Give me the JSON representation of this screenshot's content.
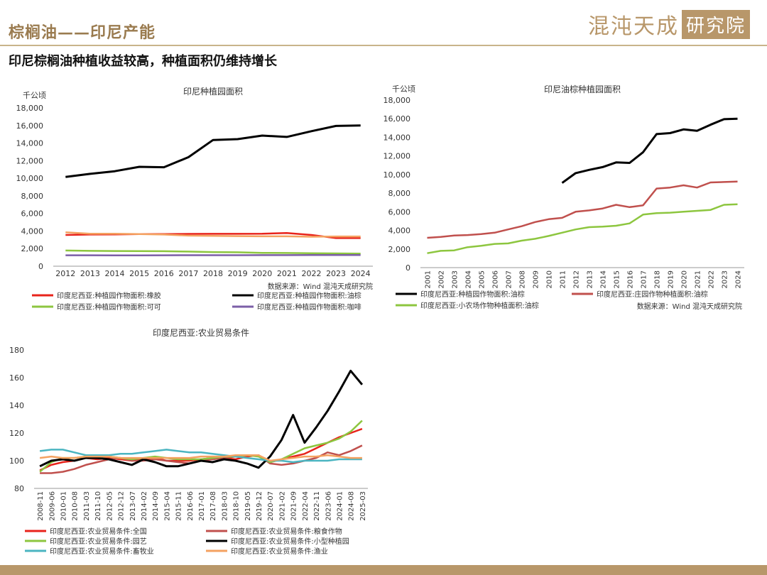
{
  "header": {
    "title": "棕榈油——印尼产能",
    "subtitle": "印尼棕榈油种植收益较高，种植面积仍维持增长",
    "logo_text": "混沌天成",
    "logo_box_text": "研究院"
  },
  "colors": {
    "accent": "#b8976a",
    "black": "#000000",
    "red": "#e8231b",
    "green": "#8dc63f",
    "purple": "#7b5ea7",
    "orange": "#f4a261",
    "rose": "#c0504d",
    "cyan": "#4bb5c1"
  },
  "chart_data": [
    {
      "type": "line",
      "title": "印尼种植园面积",
      "unit": "千公顷",
      "source": "数据来源：Wind 混沌天成研究院",
      "categories": [
        "2012",
        "2013",
        "2014",
        "2015",
        "2016",
        "2017",
        "2018",
        "2019",
        "2020",
        "2021",
        "2022",
        "2023",
        "2024"
      ],
      "ylim": [
        0,
        18000
      ],
      "yticks": [
        0,
        2000,
        4000,
        6000,
        8000,
        10000,
        12000,
        14000,
        16000,
        18000
      ],
      "ytick_labels": [
        "0",
        "2,000",
        "4,000",
        "6,000",
        "8,000",
        "10,000",
        "12,000",
        "14,000",
        "16,000",
        "18,000"
      ],
      "series": [
        {
          "name": "印度尼西亚:种植园作物面积:橡胶",
          "color": "#e8231b",
          "values": [
            3550,
            3600,
            3620,
            3650,
            3650,
            3670,
            3680,
            3680,
            3700,
            3780,
            3550,
            3200,
            3200
          ]
        },
        {
          "name": "印度尼西亚:种植园作物面积:油棕",
          "color": "#000000",
          "values": [
            10150,
            10500,
            10800,
            11300,
            11250,
            12400,
            14350,
            14450,
            14850,
            14700,
            15350,
            15950,
            16000
          ]
        },
        {
          "name": "印度尼西亚:种植园作物面积:可可",
          "color": "#8dc63f",
          "values": [
            1780,
            1740,
            1730,
            1710,
            1700,
            1660,
            1610,
            1580,
            1520,
            1500,
            1470,
            1450,
            1430
          ]
        },
        {
          "name": "印度尼西亚:种植园作物面积:咖啡",
          "color": "#7b5ea7",
          "values": [
            1240,
            1240,
            1230,
            1230,
            1240,
            1250,
            1250,
            1250,
            1260,
            1260,
            1270,
            1270,
            1270
          ]
        },
        {
          "name": "",
          "color": "#f4a261",
          "values": [
            3850,
            3700,
            3700,
            3650,
            3600,
            3480,
            3450,
            3420,
            3400,
            3400,
            3350,
            3380,
            3380
          ]
        }
      ],
      "legend_placement": "bottom"
    },
    {
      "type": "line",
      "title": "印尼油棕种植园面积",
      "unit": "千公顷",
      "source": "数据来源：Wind  混沌天成研究院",
      "categories": [
        "2001",
        "2002",
        "2003",
        "2004",
        "2005",
        "2006",
        "2007",
        "2008",
        "2009",
        "2010",
        "2011",
        "2012",
        "2013",
        "2014",
        "2015",
        "2016",
        "2017",
        "2018",
        "2019",
        "2020",
        "2021",
        "2022",
        "2023",
        "2024"
      ],
      "ylim": [
        0,
        18000
      ],
      "yticks": [
        0,
        2000,
        4000,
        6000,
        8000,
        10000,
        12000,
        14000,
        16000,
        18000
      ],
      "ytick_labels": [
        "0",
        "2,000",
        "4,000",
        "6,000",
        "8,000",
        "10,000",
        "12,000",
        "14,000",
        "16,000",
        "18,000"
      ],
      "series": [
        {
          "name": "印度尼西亚:种植园作物面积:油棕",
          "color": "#000000",
          "values": [
            null,
            null,
            null,
            null,
            null,
            null,
            null,
            null,
            null,
            null,
            9100,
            10150,
            10500,
            10800,
            11300,
            11250,
            12400,
            14350,
            14450,
            14850,
            14700,
            15350,
            15950,
            16000
          ]
        },
        {
          "name": "印度尼西亚:庄园作物种植面积:油棕",
          "color": "#c0504d",
          "values": [
            3200,
            3300,
            3450,
            3500,
            3600,
            3750,
            4100,
            4450,
            4900,
            5200,
            5350,
            6000,
            6150,
            6350,
            6750,
            6500,
            6700,
            8500,
            8600,
            8850,
            8600,
            9150,
            9200,
            9250
          ]
        },
        {
          "name": "印度尼西亚:小农场作物种植面积:油棕",
          "color": "#8dc63f",
          "values": [
            1550,
            1800,
            1850,
            2200,
            2350,
            2550,
            2600,
            2900,
            3100,
            3400,
            3750,
            4100,
            4350,
            4400,
            4500,
            4750,
            5700,
            5850,
            5900,
            6000,
            6100,
            6200,
            6750,
            6800
          ]
        }
      ],
      "legend_placement": "bottom"
    },
    {
      "type": "line",
      "title": "印度尼西亚:农业贸易条件",
      "categories": [
        "2008-11",
        "2009-06",
        "2010-01",
        "2010-08",
        "2011-03",
        "2011-10",
        "2012-05",
        "2012-12",
        "2013-07",
        "2014-02",
        "2014-09",
        "2015-04",
        "2015-11",
        "2016-06",
        "2017-01",
        "2017-08",
        "2018-03",
        "2018-10",
        "2019-05",
        "2019-12",
        "2020-07",
        "2021-02",
        "2021-09",
        "2022-04",
        "2022-11",
        "2023-06",
        "2024-01",
        "2024-08",
        "2025-03"
      ],
      "ylim": [
        80,
        180
      ],
      "yticks": [
        80,
        100,
        120,
        140,
        160,
        180
      ],
      "ytick_labels": [
        "80",
        "100",
        "120",
        "140",
        "160",
        "180"
      ],
      "series": [
        {
          "name": "印度尼西亚:农业贸易条件:全国",
          "color": "#e8231b",
          "values": [
            93,
            97,
            99,
            100,
            102,
            101,
            102,
            101,
            100,
            101,
            102,
            100,
            100,
            100,
            101,
            102,
            102,
            101,
            103,
            104,
            99,
            101,
            103,
            105,
            109,
            113,
            117,
            120,
            123
          ]
        },
        {
          "name": "印度尼西亚:农业贸易条件:粮食作物",
          "color": "#c0504d",
          "values": [
            91,
            91,
            92,
            94,
            97,
            99,
            101,
            102,
            100,
            100,
            101,
            100,
            99,
            98,
            100,
            101,
            102,
            103,
            104,
            104,
            98,
            97,
            98,
            100,
            102,
            106,
            104,
            107,
            111
          ]
        },
        {
          "name": "印度尼西亚:农业贸易条件:园艺",
          "color": "#8dc63f",
          "values": [
            92,
            99,
            102,
            102,
            103,
            103,
            103,
            102,
            101,
            102,
            103,
            102,
            101,
            101,
            101,
            102,
            103,
            103,
            104,
            103,
            99,
            101,
            105,
            109,
            111,
            113,
            116,
            121,
            129
          ]
        },
        {
          "name": "印度尼西亚:农业贸易条件:小型种植园",
          "color": "#000000",
          "values": [
            96,
            100,
            101,
            100,
            102,
            102,
            101,
            99,
            97,
            101,
            99,
            96,
            96,
            98,
            100,
            99,
            101,
            100,
            98,
            95,
            103,
            115,
            133,
            113,
            124,
            136,
            150,
            165,
            155
          ]
        },
        {
          "name": "印度尼西亚:农业贸易条件:畜牧业",
          "color": "#4bb5c1",
          "values": [
            107,
            108,
            108,
            106,
            104,
            104,
            104,
            105,
            105,
            106,
            107,
            108,
            107,
            106,
            106,
            105,
            104,
            103,
            102,
            101,
            100,
            100,
            99,
            100,
            100,
            100,
            101,
            101,
            101
          ]
        },
        {
          "name": "印度尼西亚:农业贸易条件:渔业",
          "color": "#f4a261",
          "values": [
            102,
            103,
            102,
            102,
            103,
            103,
            103,
            102,
            102,
            102,
            102,
            102,
            102,
            102,
            103,
            103,
            103,
            104,
            104,
            104,
            100,
            101,
            102,
            103,
            103,
            104,
            103,
            102,
            102
          ]
        }
      ],
      "legend_placement": "bottom"
    }
  ]
}
